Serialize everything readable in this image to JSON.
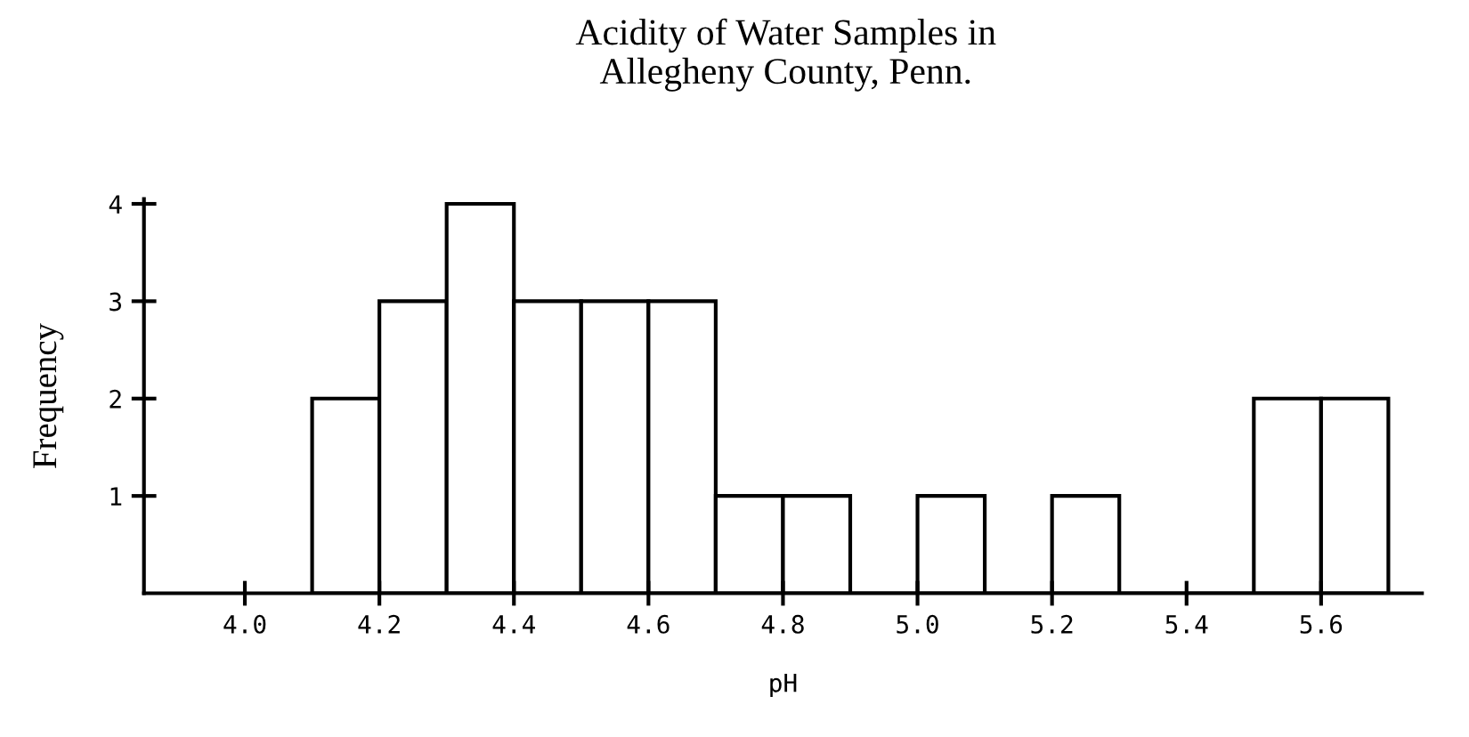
{
  "chart_data": {
    "type": "histogram",
    "title": "Acidity of Water Samples in\nAllegheny County, Penn.",
    "xlabel": "pH",
    "ylabel": "Frequency",
    "bins": [
      4.1,
      4.2,
      4.3,
      4.4,
      4.5,
      4.6,
      4.7,
      4.8,
      4.9,
      5.0,
      5.1,
      5.2,
      5.3,
      5.4,
      5.5,
      5.6,
      5.7
    ],
    "values": [
      2,
      3,
      4,
      3,
      3,
      3,
      1,
      1,
      0,
      1,
      0,
      1,
      0,
      0,
      2,
      2
    ],
    "color": "#ffffff",
    "xlim": [
      3.85,
      5.75
    ],
    "xticks": [
      {
        "value": 4.0,
        "label": "4.0"
      },
      4.2,
      4.4,
      4.6,
      4.8,
      {
        "value": 5.0,
        "label": "5.0"
      },
      5.2,
      5.4,
      5.6
    ],
    "ylim": [
      0,
      4.05
    ],
    "yticks": [
      1,
      2,
      3,
      4
    ],
    "grid": false
  }
}
